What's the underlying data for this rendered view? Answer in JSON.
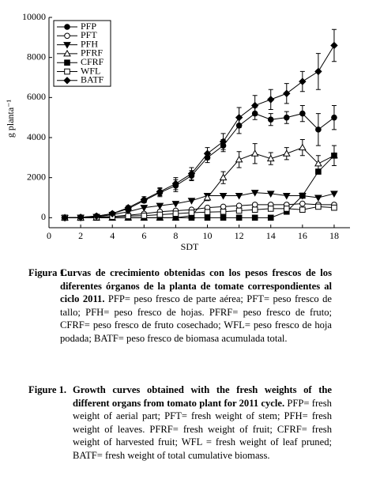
{
  "chart_data": {
    "type": "line",
    "x_label": "SDT",
    "y_label": "g planta⁻¹",
    "x": [
      1,
      2,
      3,
      4,
      5,
      6,
      7,
      8,
      9,
      10,
      11,
      12,
      13,
      14,
      15,
      16,
      17,
      18
    ],
    "xlim": [
      0,
      19
    ],
    "xticks": [
      0,
      2,
      4,
      6,
      8,
      10,
      12,
      14,
      16,
      18
    ],
    "ylim": [
      -500,
      10000
    ],
    "yticks": [
      0,
      2000,
      4000,
      6000,
      8000,
      10000
    ],
    "legend": "upper left",
    "series": [
      {
        "name": "PFP",
        "color": "#000000",
        "marker": "circle",
        "filled": true,
        "values": [
          0,
          20,
          80,
          200,
          450,
          850,
          1250,
          1600,
          2100,
          3000,
          3600,
          4600,
          5200,
          4900,
          5000,
          5200,
          4400,
          5000
        ],
        "errors": [
          0,
          0,
          0,
          50,
          100,
          100,
          200,
          300,
          250,
          250,
          300,
          400,
          300,
          300,
          300,
          400,
          800,
          600
        ]
      },
      {
        "name": "PFT",
        "color": "#000000",
        "marker": "circle",
        "filled": false,
        "values": [
          0,
          10,
          30,
          60,
          120,
          200,
          300,
          350,
          400,
          500,
          550,
          600,
          650,
          650,
          650,
          700,
          650,
          650
        ]
      },
      {
        "name": "PFH",
        "color": "#000000",
        "marker": "triangle-down",
        "filled": true,
        "values": [
          0,
          10,
          50,
          150,
          300,
          500,
          600,
          700,
          850,
          1100,
          1100,
          1100,
          1250,
          1200,
          1100,
          1100,
          1000,
          1200
        ]
      },
      {
        "name": "PFRF",
        "color": "#000000",
        "marker": "triangle-up",
        "filled": false,
        "values": [
          0,
          0,
          0,
          0,
          0,
          0,
          0,
          0,
          100,
          1000,
          2000,
          2900,
          3200,
          2950,
          3200,
          3500,
          2700,
          3100
        ],
        "errors": [
          0,
          0,
          0,
          0,
          0,
          0,
          0,
          0,
          0,
          150,
          300,
          400,
          500,
          300,
          300,
          400,
          400,
          500
        ]
      },
      {
        "name": "CFRF",
        "color": "#000000",
        "marker": "square",
        "filled": true,
        "values": [
          0,
          0,
          0,
          0,
          0,
          0,
          0,
          0,
          0,
          0,
          0,
          0,
          0,
          0,
          300,
          1100,
          2300,
          3100
        ]
      },
      {
        "name": "WFL",
        "color": "#000000",
        "marker": "square",
        "filled": false,
        "values": [
          0,
          0,
          20,
          50,
          80,
          100,
          150,
          200,
          250,
          280,
          300,
          350,
          400,
          450,
          450,
          400,
          550,
          500
        ]
      },
      {
        "name": "BATF",
        "color": "#000000",
        "marker": "diamond",
        "filled": true,
        "values": [
          0,
          20,
          80,
          200,
          500,
          900,
          1300,
          1700,
          2200,
          3200,
          3800,
          5000,
          5600,
          5900,
          6200,
          6800,
          7300,
          8600
        ],
        "errors": [
          0,
          0,
          0,
          50,
          100,
          150,
          200,
          300,
          300,
          300,
          400,
          500,
          500,
          500,
          500,
          500,
          900,
          800
        ]
      }
    ]
  },
  "caption": {
    "es_label": "Figura 1.",
    "es_title": "Curvas de crecimiento obtenidas con los pesos frescos de los diferentes órganos de la planta de tomate correspondientes al ciclo 2011.",
    "es_text": "PFP= peso fresco de parte aérea; PFT= peso fresco de tallo; PFH= peso fresco de hojas. PFRF= peso fresco de fruto; CFRF= peso fresco de fruto cosechado; WFL= peso fresco de hoja podada; BATF= peso fresco de biomasa acumulada total.",
    "en_label": "Figure 1.",
    "en_title": "Growth curves obtained with the fresh weights of the different organs from tomato plant for 2011 cycle.",
    "en_text": "PFP= fresh weight of aerial part; PFT= fresh weight of stem; PFH= fresh weight of leaves. PFRF= fresh weight of fruit; CFRF= fresh weight of harvested fruit; WFL = fresh weight of leaf pruned; BATF= fresh weight of total cumulative biomass."
  }
}
